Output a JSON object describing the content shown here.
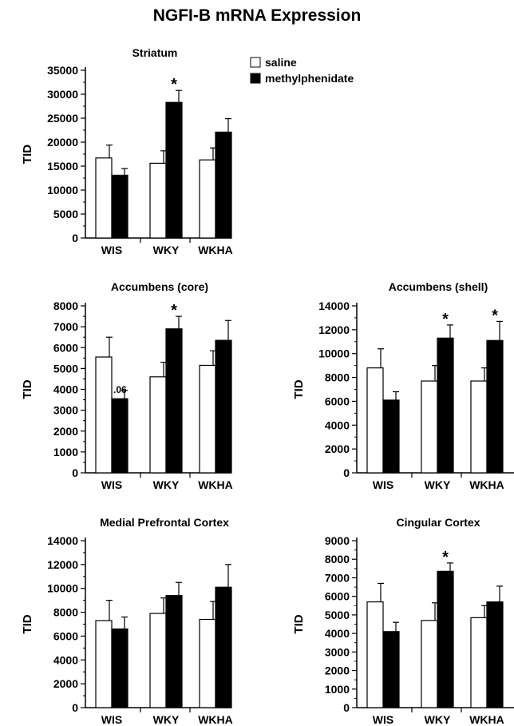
{
  "figure_title": "NGFI-B mRNA Expression",
  "legend": {
    "entries": [
      {
        "label": "saline",
        "fill": "#ffffff"
      },
      {
        "label": "methylphenidate",
        "fill": "#000000"
      }
    ]
  },
  "colors": {
    "saline": "#ffffff",
    "methylphenidate": "#000000",
    "stroke": "#000000"
  },
  "chart_data": [
    {
      "type": "bar",
      "title": "Striatum",
      "ylabel": "TID",
      "ylim": [
        0,
        35000
      ],
      "yticks": [
        0,
        5000,
        10000,
        15000,
        20000,
        25000,
        30000,
        35000
      ],
      "categories": [
        "WIS",
        "WKY",
        "WKHA"
      ],
      "series": [
        {
          "name": "saline",
          "values": [
            16700,
            15600,
            16300
          ],
          "errors": [
            2700,
            2600,
            2500
          ]
        },
        {
          "name": "methylphenidate",
          "values": [
            13100,
            28300,
            22100
          ],
          "errors": [
            1400,
            2500,
            2800
          ]
        }
      ],
      "annotations": [
        {
          "category": "WKY",
          "series": "methylphenidate",
          "text": "*"
        }
      ]
    },
    {
      "type": "bar",
      "title": "Accumbens (core)",
      "ylabel": "TID",
      "ylim": [
        0,
        8000
      ],
      "yticks": [
        0,
        1000,
        2000,
        3000,
        4000,
        5000,
        6000,
        7000,
        8000
      ],
      "categories": [
        "WIS",
        "WKY",
        "WKHA"
      ],
      "series": [
        {
          "name": "saline",
          "values": [
            5550,
            4600,
            5150
          ],
          "errors": [
            950,
            700,
            700
          ]
        },
        {
          "name": "methylphenidate",
          "values": [
            3550,
            6900,
            6350
          ],
          "errors": [
            400,
            600,
            950
          ]
        }
      ],
      "annotations": [
        {
          "category": "WIS",
          "series": "methylphenidate",
          "text": ".06"
        },
        {
          "category": "WKY",
          "series": "methylphenidate",
          "text": "*"
        }
      ]
    },
    {
      "type": "bar",
      "title": "Accumbens (shell)",
      "ylabel": "TID",
      "ylim": [
        0,
        14000
      ],
      "yticks": [
        0,
        2000,
        4000,
        6000,
        8000,
        10000,
        12000,
        14000
      ],
      "categories": [
        "WIS",
        "WKY",
        "WKHA"
      ],
      "series": [
        {
          "name": "saline",
          "values": [
            8800,
            7700,
            7700
          ],
          "errors": [
            1600,
            1300,
            1100
          ]
        },
        {
          "name": "methylphenidate",
          "values": [
            6100,
            11300,
            11100
          ],
          "errors": [
            700,
            1100,
            1600
          ]
        }
      ],
      "annotations": [
        {
          "category": "WKY",
          "series": "methylphenidate",
          "text": "*"
        },
        {
          "category": "WKHA",
          "series": "methylphenidate",
          "text": "*"
        }
      ]
    },
    {
      "type": "bar",
      "title": "Medial Prefrontal Cortex",
      "ylabel": "TID",
      "ylim": [
        0,
        14000
      ],
      "yticks": [
        0,
        2000,
        4000,
        6000,
        8000,
        10000,
        12000,
        14000
      ],
      "categories": [
        "WIS",
        "WKY",
        "WKHA"
      ],
      "series": [
        {
          "name": "saline",
          "values": [
            7300,
            7900,
            7400
          ],
          "errors": [
            1700,
            1300,
            1500
          ]
        },
        {
          "name": "methylphenidate",
          "values": [
            6600,
            9400,
            10100
          ],
          "errors": [
            1000,
            1100,
            1900
          ]
        }
      ],
      "annotations": []
    },
    {
      "type": "bar",
      "title": "Cingular Cortex",
      "ylabel": "TID",
      "ylim": [
        0,
        9000
      ],
      "yticks": [
        0,
        1000,
        2000,
        3000,
        4000,
        5000,
        6000,
        7000,
        8000,
        9000
      ],
      "categories": [
        "WIS",
        "WKY",
        "WKHA"
      ],
      "series": [
        {
          "name": "saline",
          "values": [
            5700,
            4700,
            4850
          ],
          "errors": [
            1000,
            950,
            650
          ]
        },
        {
          "name": "methylphenidate",
          "values": [
            4100,
            7350,
            5700
          ],
          "errors": [
            500,
            450,
            850
          ]
        }
      ],
      "annotations": [
        {
          "category": "WKY",
          "series": "methylphenidate",
          "text": "*"
        }
      ]
    }
  ]
}
